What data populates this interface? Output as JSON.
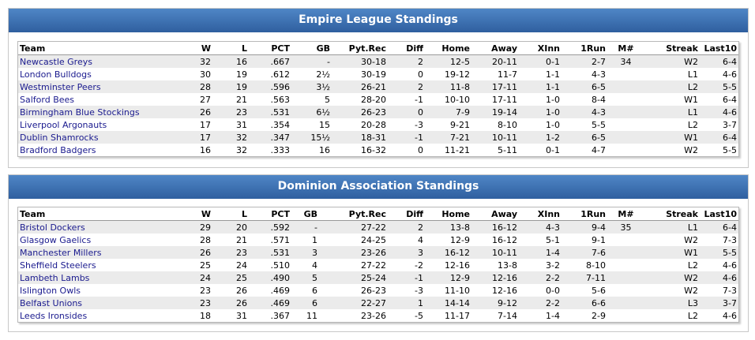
{
  "columns": [
    "Team",
    "W",
    "L",
    "PCT",
    "GB",
    "Pyt.Rec",
    "Diff",
    "Home",
    "Away",
    "XInn",
    "1Run",
    "M#",
    "Streak",
    "Last10"
  ],
  "leagues": [
    {
      "title": "Empire League Standings",
      "rows": [
        [
          "Newcastle Greys",
          "32",
          "16",
          ".667",
          "-",
          "30-18",
          "2",
          "12-5",
          "20-11",
          "0-1",
          "2-7",
          "34",
          "W2",
          "6-4"
        ],
        [
          "London Bulldogs",
          "30",
          "19",
          ".612",
          "2½",
          "30-19",
          "0",
          "19-12",
          "11-7",
          "1-1",
          "4-3",
          "",
          "L1",
          "4-6"
        ],
        [
          "Westminster Peers",
          "28",
          "19",
          ".596",
          "3½",
          "26-21",
          "2",
          "11-8",
          "17-11",
          "1-1",
          "6-5",
          "",
          "L2",
          "5-5"
        ],
        [
          "Salford Bees",
          "27",
          "21",
          ".563",
          "5",
          "28-20",
          "-1",
          "10-10",
          "17-11",
          "1-0",
          "8-4",
          "",
          "W1",
          "6-4"
        ],
        [
          "Birmingham Blue Stockings",
          "26",
          "23",
          ".531",
          "6½",
          "26-23",
          "0",
          "7-9",
          "19-14",
          "1-0",
          "4-3",
          "",
          "L1",
          "4-6"
        ],
        [
          "Liverpool Argonauts",
          "17",
          "31",
          ".354",
          "15",
          "20-28",
          "-3",
          "9-21",
          "8-10",
          "1-0",
          "5-5",
          "",
          "L2",
          "3-7"
        ],
        [
          "Dublin Shamrocks",
          "17",
          "32",
          ".347",
          "15½",
          "18-31",
          "-1",
          "7-21",
          "10-11",
          "1-2",
          "6-5",
          "",
          "W1",
          "6-4"
        ],
        [
          "Bradford Badgers",
          "16",
          "32",
          ".333",
          "16",
          "16-32",
          "0",
          "11-21",
          "5-11",
          "0-1",
          "4-7",
          "",
          "W2",
          "5-5"
        ]
      ]
    },
    {
      "title": "Dominion Association Standings",
      "rows": [
        [
          "Bristol Dockers",
          "29",
          "20",
          ".592",
          "-",
          "27-22",
          "2",
          "13-8",
          "16-12",
          "4-3",
          "9-4",
          "35",
          "L1",
          "6-4"
        ],
        [
          "Glasgow Gaelics",
          "28",
          "21",
          ".571",
          "1",
          "24-25",
          "4",
          "12-9",
          "16-12",
          "5-1",
          "9-1",
          "",
          "W2",
          "7-3"
        ],
        [
          "Manchester Millers",
          "26",
          "23",
          ".531",
          "3",
          "23-26",
          "3",
          "16-12",
          "10-11",
          "1-4",
          "7-6",
          "",
          "W1",
          "5-5"
        ],
        [
          "Sheffield Steelers",
          "25",
          "24",
          ".510",
          "4",
          "27-22",
          "-2",
          "12-16",
          "13-8",
          "3-2",
          "8-10",
          "",
          "L2",
          "4-6"
        ],
        [
          "Lambeth Lambs",
          "24",
          "25",
          ".490",
          "5",
          "25-24",
          "-1",
          "12-9",
          "12-16",
          "2-2",
          "7-11",
          "",
          "W2",
          "4-6"
        ],
        [
          "Islington Owls",
          "23",
          "26",
          ".469",
          "6",
          "26-23",
          "-3",
          "11-10",
          "12-16",
          "0-0",
          "5-6",
          "",
          "W2",
          "7-3"
        ],
        [
          "Belfast Unions",
          "23",
          "26",
          ".469",
          "6",
          "22-27",
          "1",
          "14-14",
          "9-12",
          "2-2",
          "6-6",
          "",
          "L3",
          "3-7"
        ],
        [
          "Leeds Ironsides",
          "18",
          "31",
          ".367",
          "11",
          "23-26",
          "-5",
          "11-17",
          "7-14",
          "1-4",
          "2-9",
          "",
          "L2",
          "4-6"
        ]
      ]
    }
  ],
  "colors": {
    "header_top": "#4f86c6",
    "header_bottom": "#2f5f9f",
    "link": "#1a1a8e",
    "row_alt": "#ebebeb"
  }
}
